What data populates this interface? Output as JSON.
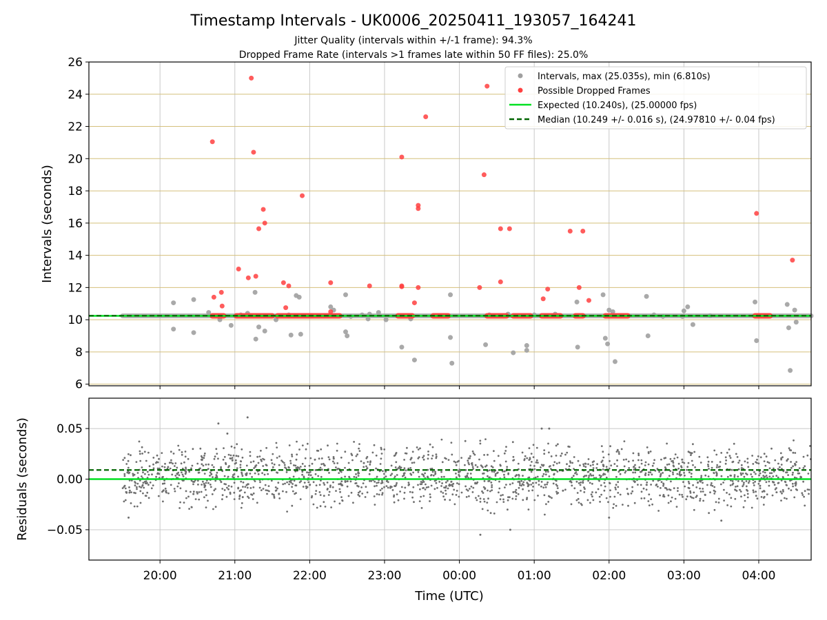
{
  "figure": {
    "title": "Timestamp Intervals - UK0006_20250411_193057_164241",
    "subtitle_1": "Jitter Quality (intervals within +/-1 frame): 94.3%",
    "subtitle_2": "Dropped Frame Rate (intervals >1 frames late within 50 FF files): 25.0%"
  },
  "colors": {
    "intervals": "#a0a0a0",
    "dropped": "#ff4040",
    "expected": "#00e020",
    "median": "#006400",
    "residuals": "#6e6e6e",
    "hgrid_top": "#d4bf7a",
    "grid": "#c8c8c8"
  },
  "chart_data": [
    {
      "type": "scatter",
      "panel": "top",
      "xlabel": "",
      "ylabel": "Intervals (seconds)",
      "x_unit": "hours since 00:00 UTC (20:00 = -4)",
      "xlim": [
        -4.95,
        4.7
      ],
      "ylim": [
        5.9,
        26
      ],
      "yticks": [
        6,
        8,
        10,
        12,
        14,
        16,
        18,
        20,
        22,
        24,
        26
      ],
      "ytick_labels": [
        "6",
        "8",
        "10",
        "12",
        "14",
        "16",
        "18",
        "20",
        "22",
        "24",
        "26"
      ],
      "grid": true,
      "legend_placement": "top-right",
      "legend": [
        {
          "key": "intervals",
          "label": "Intervals, max (25.035s), min (6.810s)"
        },
        {
          "key": "dropped",
          "label": "Possible Dropped Frames"
        },
        {
          "key": "expected",
          "label": "Expected (10.240s), (25.00000 fps)"
        },
        {
          "key": "median",
          "label": "Median (10.249 +/- 0.016 s), (24.97810 +/- 0.04 fps)"
        }
      ],
      "expected_value": 10.24,
      "median_value": 10.249,
      "baseline_band": {
        "x_start": -4.5,
        "x_end": 4.7,
        "y": 10.24
      },
      "series": [
        {
          "key": "intervals",
          "x": [
            -3.82,
            -3.82,
            -3.55,
            -3.55,
            -3.35,
            -3.2,
            -3.05,
            -2.92,
            -2.83,
            -2.73,
            -2.72,
            -2.68,
            -2.6,
            -2.45,
            -2.28,
            -2.25,
            -2.18,
            -2.14,
            -2.12,
            -1.72,
            -1.68,
            -1.52,
            -1.52,
            -1.5,
            -1.45,
            -1.3,
            -1.22,
            -1.2,
            -1.08,
            -0.98,
            -0.77,
            -0.65,
            -0.6,
            -0.12,
            -0.12,
            -0.1,
            0.35,
            0.4,
            0.65,
            0.72,
            0.9,
            0.9,
            1.0,
            1.28,
            1.57,
            1.58,
            1.92,
            1.95,
            1.98,
            2.0,
            2.05,
            2.08,
            2.5,
            2.52,
            2.6,
            2.72,
            2.98,
            3.0,
            3.05,
            3.12,
            3.35,
            3.95,
            3.97,
            4.38,
            4.4,
            4.42,
            4.48,
            4.5
          ],
          "y": [
            11.05,
            9.42,
            11.25,
            9.2,
            10.45,
            10.0,
            9.65,
            10.3,
            10.4,
            11.7,
            8.8,
            9.55,
            9.3,
            10.0,
            10.3,
            9.05,
            11.5,
            11.4,
            9.1,
            10.8,
            10.6,
            9.25,
            11.55,
            9.0,
            10.2,
            10.3,
            10.05,
            10.35,
            10.45,
            10.0,
            8.3,
            10.05,
            7.5,
            11.55,
            8.9,
            7.3,
            8.45,
            10.3,
            10.35,
            7.95,
            8.4,
            8.1,
            10.3,
            10.35,
            11.1,
            8.3,
            11.55,
            8.85,
            8.5,
            10.6,
            10.5,
            7.4,
            11.45,
            9.0,
            10.3,
            10.2,
            10.2,
            10.55,
            10.8,
            9.7,
            10.25,
            11.1,
            8.7,
            10.95,
            9.5,
            6.85,
            10.6,
            9.85
          ]
        },
        {
          "key": "dropped",
          "x": [
            -3.3,
            -3.28,
            -3.18,
            -3.17,
            -2.95,
            -2.82,
            -2.78,
            -2.75,
            -2.72,
            -2.68,
            -2.62,
            -2.6,
            -2.35,
            -2.32,
            -2.28,
            -2.1,
            -1.72,
            -1.72,
            -0.77,
            -0.77,
            -1.2,
            -0.77,
            -0.6,
            -0.55,
            -0.45,
            -0.55,
            -0.55,
            0.27,
            0.33,
            0.37,
            0.55,
            0.55,
            0.67,
            1.12,
            1.18,
            1.48,
            1.6,
            1.65,
            1.73,
            3.97,
            4.45
          ],
          "y": [
            21.05,
            11.4,
            11.7,
            10.85,
            13.15,
            12.6,
            25.0,
            20.4,
            12.7,
            15.65,
            16.85,
            16.0,
            12.3,
            10.75,
            12.1,
            17.7,
            12.3,
            10.5,
            12.05,
            20.1,
            12.1,
            12.1,
            11.05,
            16.9,
            22.6,
            12.0,
            17.1,
            12.0,
            19.0,
            24.5,
            12.35,
            15.65,
            15.65,
            11.3,
            11.9,
            15.5,
            12.0,
            15.5,
            11.2,
            16.6,
            13.7
          ]
        },
        {
          "key": "dropped_baseline_segments",
          "x": [
            -3.3,
            -3.15,
            -2.98,
            -2.5,
            -2.43,
            -1.98,
            -2.27,
            -1.6,
            -0.82,
            -0.63,
            -0.35,
            -0.15,
            0.37,
            0.63,
            0.72,
            0.95,
            1.1,
            1.35,
            1.55,
            1.65,
            1.95,
            2.25,
            3.95,
            4.15
          ],
          "y": [
            10.24,
            10.24,
            10.24,
            10.24,
            10.24,
            10.24,
            10.24,
            10.24,
            10.24,
            10.24,
            10.24,
            10.24,
            10.24,
            10.24,
            10.24,
            10.24,
            10.24,
            10.24,
            10.24,
            10.24,
            10.24,
            10.24,
            10.24,
            10.24
          ]
        }
      ]
    },
    {
      "type": "scatter",
      "panel": "bottom",
      "xlabel": "Time (UTC)",
      "ylabel": "Residuals (seconds)",
      "xlim": [
        -4.95,
        4.7
      ],
      "ylim": [
        -0.08,
        0.08
      ],
      "yticks": [
        -0.05,
        0.0,
        0.05
      ],
      "ytick_labels": [
        "−0.05",
        "0.00",
        "0.05"
      ],
      "xticks": [
        -4,
        -3,
        -2,
        -1,
        0,
        1,
        2,
        3,
        4
      ],
      "xtick_labels": [
        "20:00",
        "21:00",
        "22:00",
        "23:00",
        "00:00",
        "01:00",
        "02:00",
        "03:00",
        "04:00"
      ],
      "grid": true,
      "expected_value": 0.0,
      "median_value": 0.009,
      "residual_cloud": {
        "x_range": [
          -4.5,
          4.7
        ],
        "y_range": [
          -0.04,
          0.045
        ],
        "outliers_x": [
          -3.22,
          -4.42,
          -2.83,
          -3.1,
          0.28,
          0.68,
          1.1,
          1.2,
          2.0,
          3.5
        ],
        "outliers_y": [
          0.055,
          -0.038,
          0.061,
          0.045,
          -0.055,
          -0.05,
          0.05,
          0.05,
          -0.038,
          -0.041
        ]
      }
    }
  ]
}
